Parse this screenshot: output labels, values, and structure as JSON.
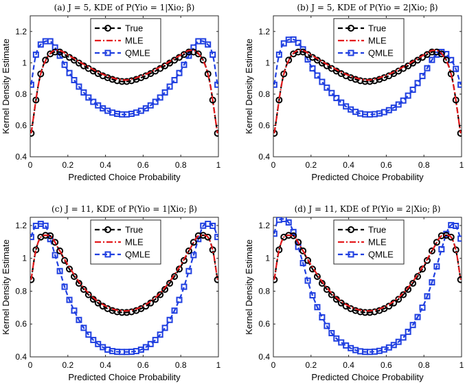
{
  "chart_data": [
    {
      "type": "line",
      "title": "(a) J = 5, KDE of P(Yio = 1|Xio; β)",
      "xlabel": "Predicted Choice Probability",
      "ylabel": "Kernel Density Estimate",
      "xlim": [
        0,
        1
      ],
      "ylim": [
        0.4,
        1.3
      ],
      "xticks": [
        "0",
        "0.2",
        "0.4",
        "0.6",
        "0.8",
        "1"
      ],
      "yticks": [
        "0.4",
        "0.6",
        "0.8",
        "1",
        "1.2"
      ],
      "legend": "top-center",
      "series": [
        {
          "name": "True",
          "color": "#000000",
          "marker": "circle",
          "style": "dashed",
          "x": [
            0.005,
            0.05,
            0.1,
            0.15,
            0.2,
            0.3,
            0.4,
            0.5,
            0.6,
            0.7,
            0.8,
            0.85,
            0.9,
            0.95,
            0.995
          ],
          "y": [
            0.55,
            0.9,
            1.05,
            1.07,
            1.04,
            0.97,
            0.91,
            0.88,
            0.91,
            0.97,
            1.04,
            1.07,
            1.05,
            0.9,
            0.55
          ]
        },
        {
          "name": "MLE",
          "color": "#e41a1c",
          "marker": "none",
          "style": "dashdot",
          "x": [
            0.005,
            0.05,
            0.1,
            0.15,
            0.2,
            0.3,
            0.4,
            0.5,
            0.6,
            0.7,
            0.8,
            0.85,
            0.9,
            0.95,
            0.995
          ],
          "y": [
            0.55,
            0.9,
            1.05,
            1.08,
            1.05,
            0.98,
            0.92,
            0.89,
            0.92,
            0.98,
            1.05,
            1.08,
            1.05,
            0.9,
            0.55
          ]
        },
        {
          "name": "QMLE",
          "color": "#1f3fe0",
          "marker": "square",
          "style": "dashed",
          "x": [
            0.005,
            0.03,
            0.07,
            0.1,
            0.15,
            0.2,
            0.3,
            0.4,
            0.5,
            0.6,
            0.7,
            0.8,
            0.85,
            0.9,
            0.93,
            0.97,
            0.995
          ],
          "y": [
            0.86,
            1.05,
            1.13,
            1.14,
            1.06,
            0.95,
            0.79,
            0.7,
            0.67,
            0.7,
            0.79,
            0.95,
            1.06,
            1.14,
            1.13,
            1.05,
            0.86
          ]
        }
      ]
    },
    {
      "type": "line",
      "title": "(b) J = 5, KDE of P(Yio = 2|Xio; β)",
      "xlabel": "Predicted Choice Probability",
      "ylabel": "Kernel Density Estimate",
      "xlim": [
        0,
        1
      ],
      "ylim": [
        0.4,
        1.3
      ],
      "xticks": [
        "0",
        "0.2",
        "0.4",
        "0.6",
        "0.8",
        "1"
      ],
      "yticks": [
        "0.4",
        "0.6",
        "0.8",
        "1",
        "1.2"
      ],
      "legend": "top-center",
      "series": [
        {
          "name": "True",
          "color": "#000000",
          "marker": "circle",
          "style": "dashed",
          "x": [
            0.005,
            0.05,
            0.1,
            0.15,
            0.2,
            0.3,
            0.4,
            0.5,
            0.6,
            0.7,
            0.8,
            0.85,
            0.9,
            0.95,
            0.995
          ],
          "y": [
            0.55,
            0.9,
            1.05,
            1.07,
            1.04,
            0.97,
            0.91,
            0.88,
            0.91,
            0.97,
            1.04,
            1.07,
            1.05,
            0.9,
            0.55
          ]
        },
        {
          "name": "MLE",
          "color": "#e41a1c",
          "marker": "none",
          "style": "dashdot",
          "x": [
            0.005,
            0.05,
            0.1,
            0.15,
            0.2,
            0.3,
            0.4,
            0.5,
            0.6,
            0.7,
            0.8,
            0.85,
            0.9,
            0.95,
            0.995
          ],
          "y": [
            0.55,
            0.9,
            1.05,
            1.08,
            1.05,
            0.98,
            0.92,
            0.89,
            0.92,
            0.98,
            1.05,
            1.08,
            1.05,
            0.9,
            0.55
          ]
        },
        {
          "name": "QMLE",
          "color": "#1f3fe0",
          "marker": "square",
          "style": "dashed",
          "x": [
            0.005,
            0.03,
            0.07,
            0.1,
            0.15,
            0.2,
            0.3,
            0.4,
            0.5,
            0.6,
            0.7,
            0.8,
            0.85,
            0.9,
            0.93,
            0.97,
            0.995
          ],
          "y": [
            0.86,
            1.05,
            1.14,
            1.15,
            1.1,
            0.98,
            0.82,
            0.71,
            0.67,
            0.69,
            0.77,
            0.93,
            1.03,
            1.07,
            1.04,
            0.96,
            0.86
          ]
        }
      ]
    },
    {
      "type": "line",
      "title": "(c) J = 11, KDE of P(Yio = 1|Xio; β)",
      "xlabel": "Predicted Choice Probability",
      "ylabel": "Kernel Density Estimate",
      "xlim": [
        0,
        1
      ],
      "ylim": [
        0.4,
        1.25
      ],
      "xticks": [
        "0",
        "0.2",
        "0.4",
        "0.6",
        "0.8",
        "1"
      ],
      "yticks": [
        "0.4",
        "0.6",
        "0.8",
        "1",
        "1.2"
      ],
      "legend": "top-center",
      "series": [
        {
          "name": "True",
          "color": "#000000",
          "marker": "circle",
          "style": "dashed",
          "x": [
            0.005,
            0.03,
            0.07,
            0.1,
            0.15,
            0.2,
            0.3,
            0.4,
            0.5,
            0.6,
            0.7,
            0.8,
            0.85,
            0.9,
            0.93,
            0.97,
            0.995
          ],
          "y": [
            0.87,
            1.05,
            1.14,
            1.14,
            1.06,
            0.95,
            0.79,
            0.7,
            0.67,
            0.7,
            0.79,
            0.95,
            1.06,
            1.14,
            1.14,
            1.05,
            0.87
          ]
        },
        {
          "name": "MLE",
          "color": "#e41a1c",
          "marker": "none",
          "style": "dashdot",
          "x": [
            0.005,
            0.03,
            0.07,
            0.1,
            0.15,
            0.2,
            0.3,
            0.4,
            0.5,
            0.6,
            0.7,
            0.8,
            0.85,
            0.9,
            0.93,
            0.97,
            0.995
          ],
          "y": [
            0.87,
            1.05,
            1.14,
            1.14,
            1.06,
            0.96,
            0.8,
            0.71,
            0.68,
            0.71,
            0.8,
            0.96,
            1.06,
            1.14,
            1.14,
            1.05,
            0.87
          ]
        },
        {
          "name": "QMLE",
          "color": "#1f3fe0",
          "marker": "square",
          "style": "dashed",
          "x": [
            0.005,
            0.02,
            0.05,
            0.08,
            0.1,
            0.15,
            0.2,
            0.3,
            0.4,
            0.5,
            0.6,
            0.7,
            0.8,
            0.85,
            0.9,
            0.92,
            0.95,
            0.98,
            0.995
          ],
          "y": [
            1.13,
            1.18,
            1.21,
            1.2,
            1.14,
            0.95,
            0.77,
            0.55,
            0.45,
            0.43,
            0.45,
            0.55,
            0.77,
            0.95,
            1.14,
            1.2,
            1.21,
            1.18,
            1.13
          ]
        }
      ]
    },
    {
      "type": "line",
      "title": "(d) J = 11, KDE of P(Yio = 2|Xio; β)",
      "xlabel": "Predicted Choice Probability",
      "ylabel": "Kernel Density Estimate",
      "xlim": [
        0,
        1
      ],
      "ylim": [
        0.4,
        1.25
      ],
      "xticks": [
        "0",
        "0.2",
        "0.4",
        "0.6",
        "0.8",
        "1"
      ],
      "yticks": [
        "0.4",
        "0.6",
        "0.8",
        "1",
        "1.2"
      ],
      "legend": "top-center",
      "series": [
        {
          "name": "True",
          "color": "#000000",
          "marker": "circle",
          "style": "dashed",
          "x": [
            0.005,
            0.03,
            0.07,
            0.1,
            0.15,
            0.2,
            0.3,
            0.4,
            0.5,
            0.6,
            0.7,
            0.8,
            0.85,
            0.9,
            0.93,
            0.97,
            0.995
          ],
          "y": [
            0.87,
            1.05,
            1.14,
            1.14,
            1.06,
            0.95,
            0.79,
            0.7,
            0.67,
            0.7,
            0.79,
            0.95,
            1.06,
            1.14,
            1.14,
            1.05,
            0.87
          ]
        },
        {
          "name": "MLE",
          "color": "#e41a1c",
          "marker": "none",
          "style": "dashdot",
          "x": [
            0.005,
            0.03,
            0.07,
            0.1,
            0.15,
            0.2,
            0.3,
            0.4,
            0.5,
            0.6,
            0.7,
            0.8,
            0.85,
            0.9,
            0.93,
            0.97,
            0.995
          ],
          "y": [
            0.87,
            1.05,
            1.14,
            1.14,
            1.06,
            0.96,
            0.8,
            0.71,
            0.68,
            0.71,
            0.8,
            0.96,
            1.06,
            1.14,
            1.14,
            1.05,
            0.87
          ]
        },
        {
          "name": "QMLE",
          "color": "#1f3fe0",
          "marker": "square",
          "style": "dashed",
          "x": [
            0.005,
            0.02,
            0.05,
            0.08,
            0.1,
            0.15,
            0.2,
            0.3,
            0.4,
            0.5,
            0.6,
            0.7,
            0.8,
            0.85,
            0.9,
            0.93,
            0.96,
            0.98,
            0.995
          ],
          "y": [
            1.15,
            1.22,
            1.24,
            1.22,
            1.18,
            1.0,
            0.8,
            0.56,
            0.46,
            0.43,
            0.45,
            0.53,
            0.72,
            0.88,
            1.08,
            1.18,
            1.21,
            1.17,
            1.12
          ]
        }
      ]
    }
  ]
}
